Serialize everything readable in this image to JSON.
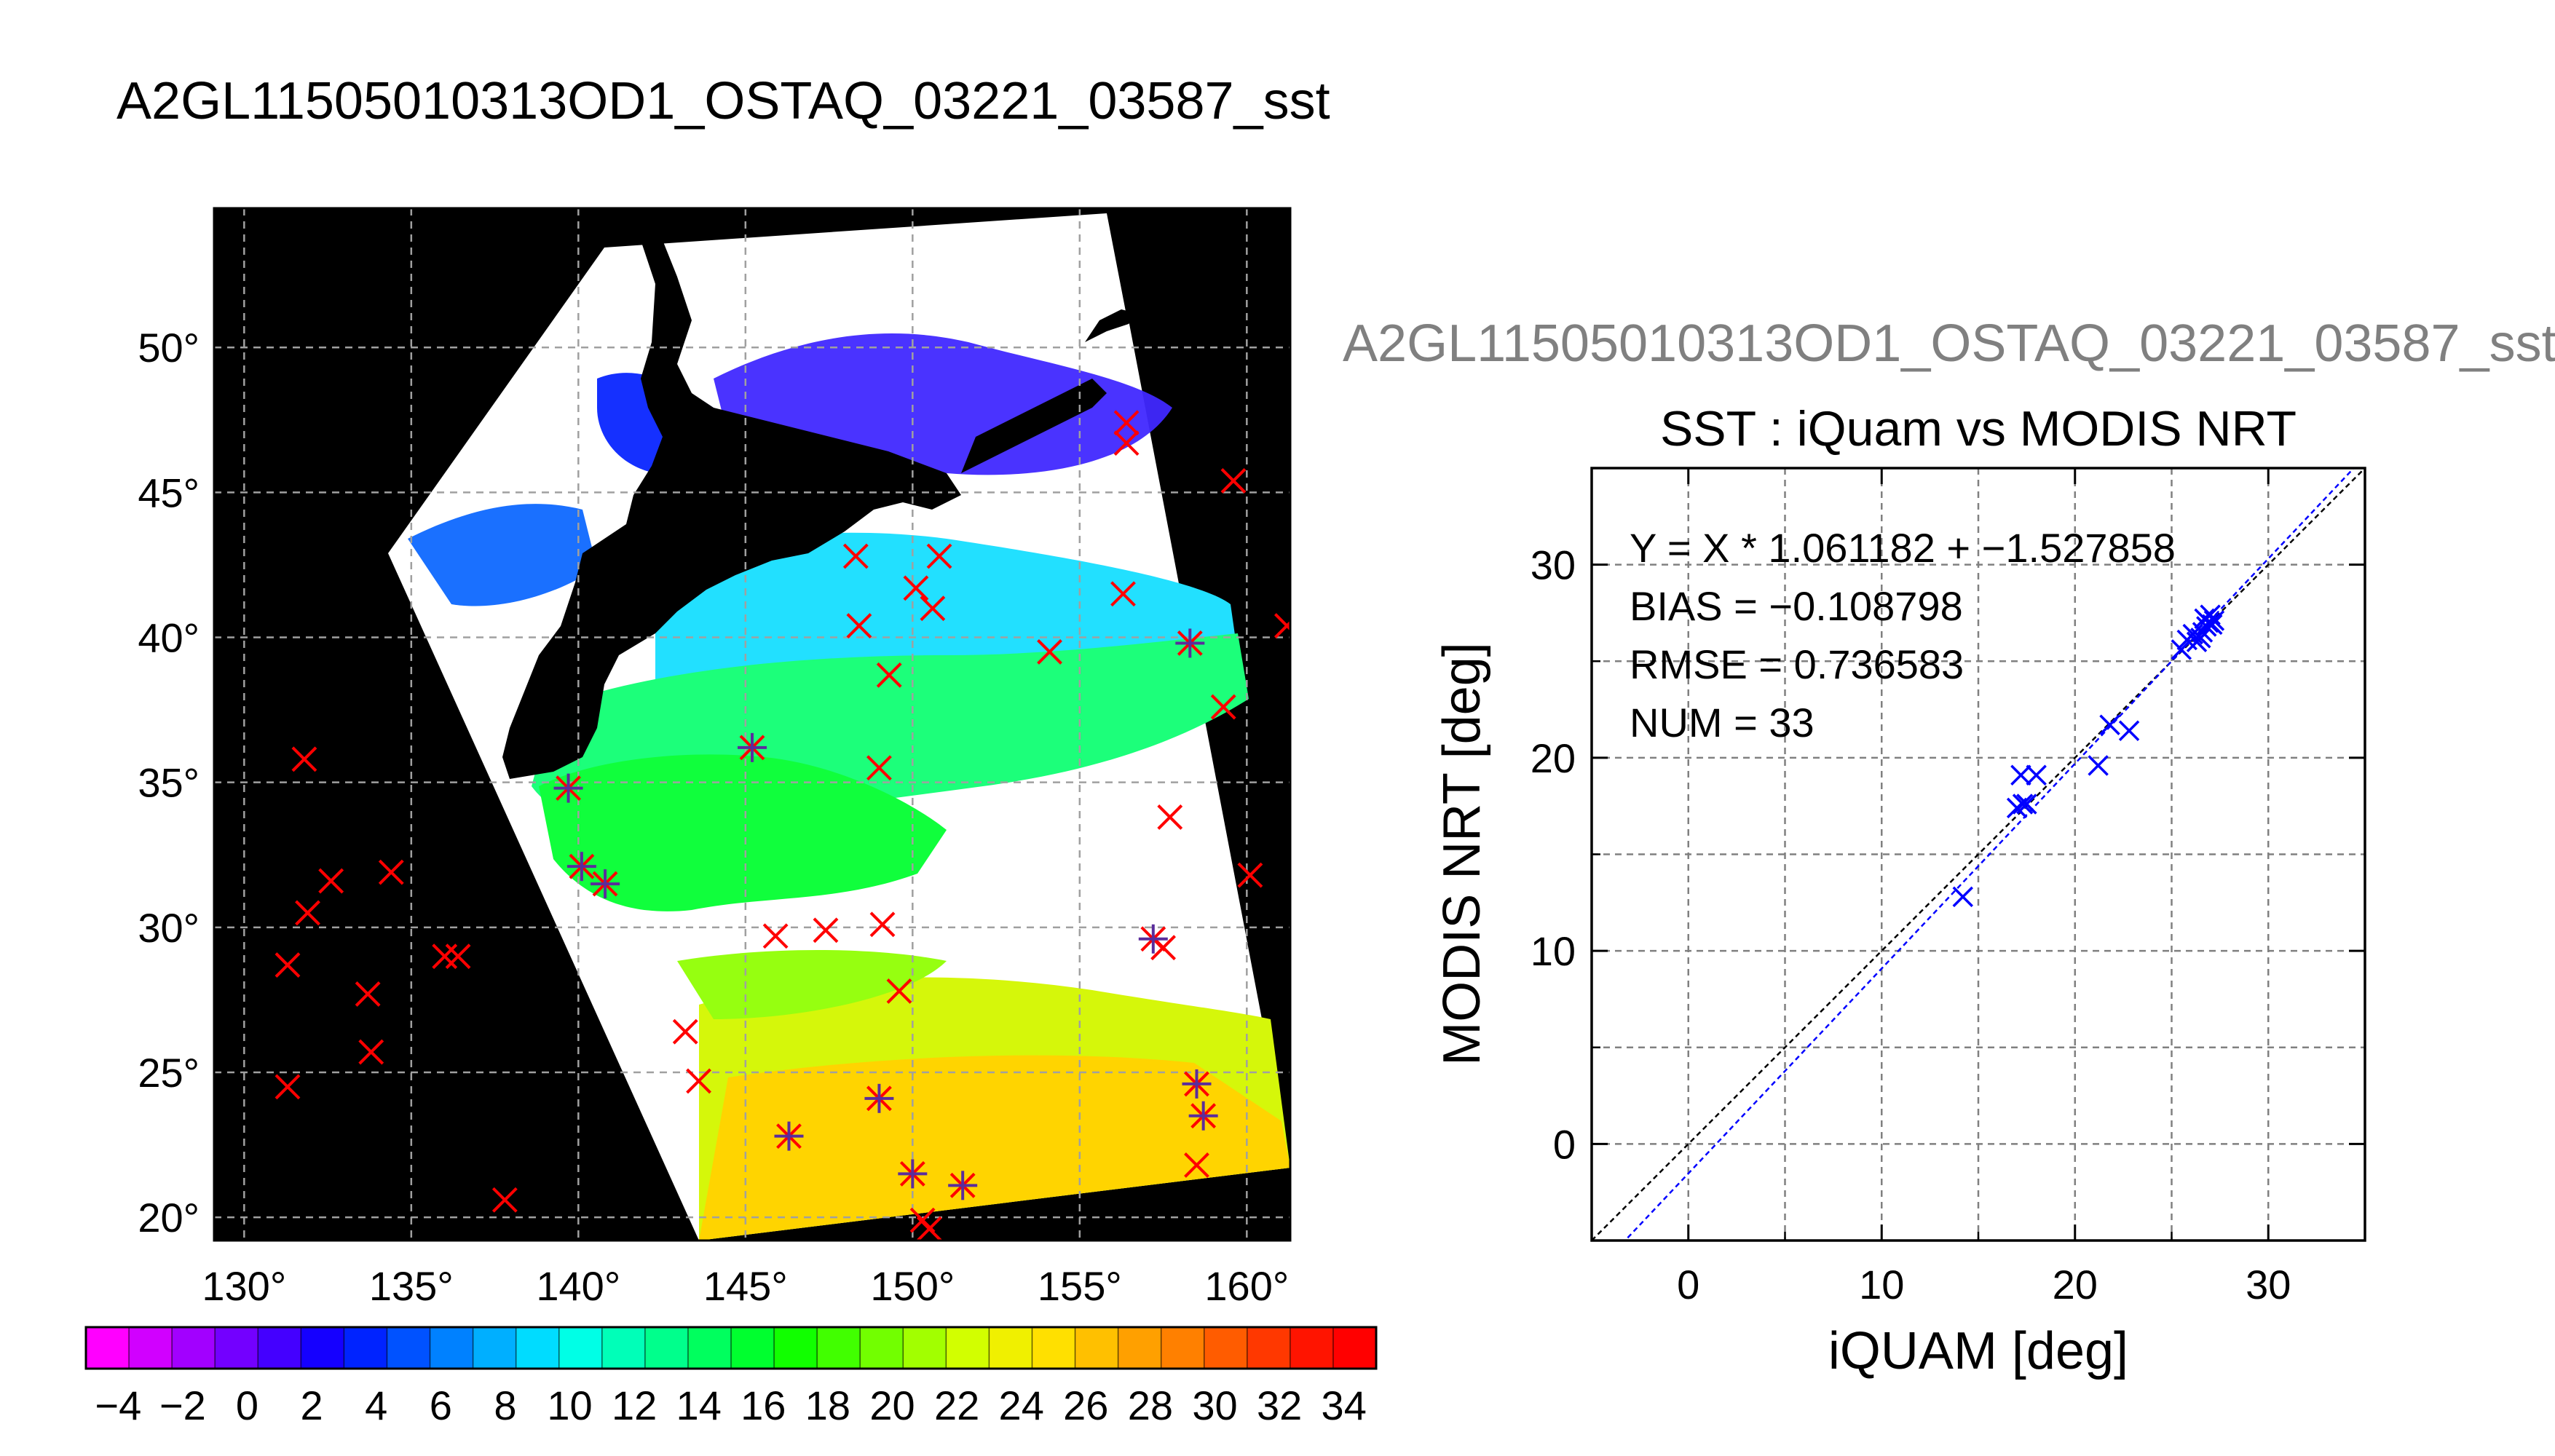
{
  "main_title": "A2GL11505010313OD1_OSTAQ_03221_03587_sst",
  "map": {
    "lon_ticks": [
      "130°",
      "135°",
      "140°",
      "145°",
      "150°",
      "155°",
      "160°"
    ],
    "lat_ticks": [
      "50°",
      "45°",
      "40°",
      "35°",
      "30°",
      "25°",
      "20°"
    ],
    "lon_range": [
      129.1,
      161.3
    ],
    "lat_range": [
      19.2,
      54.8
    ],
    "match_markers": [
      [
        131.8,
        35.8
      ],
      [
        131.9,
        30.5
      ],
      [
        132.6,
        31.6
      ],
      [
        134.4,
        31.9
      ],
      [
        131.3,
        28.7
      ],
      [
        131.3,
        24.5
      ],
      [
        133.7,
        27.7
      ],
      [
        133.8,
        25.7
      ],
      [
        136.0,
        29.0
      ],
      [
        136.4,
        29.0
      ],
      [
        137.8,
        20.6
      ],
      [
        139.7,
        34.8
      ],
      [
        140.1,
        32.1
      ],
      [
        140.8,
        31.5
      ],
      [
        145.2,
        36.2
      ],
      [
        146.3,
        22.8
      ],
      [
        143.2,
        26.4
      ],
      [
        143.6,
        24.7
      ],
      [
        145.9,
        29.7
      ],
      [
        147.4,
        29.9
      ],
      [
        148.3,
        42.8
      ],
      [
        148.4,
        40.4
      ],
      [
        149.3,
        38.7
      ],
      [
        149.0,
        35.5
      ],
      [
        149.1,
        30.1
      ],
      [
        149.0,
        24.1
      ],
      [
        149.6,
        27.8
      ],
      [
        150.0,
        21.5
      ],
      [
        150.3,
        19.9
      ],
      [
        150.5,
        19.6
      ],
      [
        151.5,
        21.1
      ],
      [
        150.1,
        41.7
      ],
      [
        150.6,
        41.0
      ],
      [
        150.8,
        42.8
      ],
      [
        154.1,
        39.5
      ],
      [
        156.4,
        47.4
      ],
      [
        156.4,
        46.7
      ],
      [
        156.3,
        41.5
      ],
      [
        157.2,
        29.6
      ],
      [
        157.5,
        29.3
      ],
      [
        157.7,
        33.8
      ],
      [
        158.3,
        39.8
      ],
      [
        158.5,
        24.6
      ],
      [
        158.5,
        21.8
      ],
      [
        158.7,
        23.5
      ],
      [
        159.3,
        37.6
      ],
      [
        159.6,
        45.4
      ],
      [
        160.1,
        31.8
      ],
      [
        161.2,
        40.4
      ]
    ],
    "star_markers": [
      [
        139.7,
        34.8
      ],
      [
        140.1,
        32.1
      ],
      [
        140.8,
        31.5
      ],
      [
        145.2,
        36.2
      ],
      [
        146.3,
        22.8
      ],
      [
        149.0,
        24.1
      ],
      [
        150.0,
        21.5
      ],
      [
        151.5,
        21.1
      ],
      [
        157.2,
        29.6
      ],
      [
        158.3,
        39.8
      ],
      [
        158.5,
        24.6
      ],
      [
        158.7,
        23.5
      ]
    ]
  },
  "colorbar": {
    "tick_labels": [
      "−4",
      "−2",
      "0",
      "2",
      "4",
      "6",
      "8",
      "10",
      "12",
      "14",
      "16",
      "18",
      "20",
      "22",
      "24",
      "26",
      "28",
      "30",
      "32",
      "34"
    ],
    "range": [
      -5,
      35
    ],
    "colors": [
      "#ff00ff",
      "#d100ff",
      "#a200ff",
      "#7300ff",
      "#4400ff",
      "#1500ff",
      "#0023ff",
      "#0052ff",
      "#0081ff",
      "#00afff",
      "#00dcff",
      "#00ffe6",
      "#00ffb8",
      "#00ff8c",
      "#00ff5e",
      "#00ff2f",
      "#11ff00",
      "#41ff00",
      "#72ff00",
      "#a2ff00",
      "#d2ff00",
      "#f0f000",
      "#ffe000",
      "#ffc000",
      "#ffa000",
      "#ff8000",
      "#ff5c00",
      "#ff3800",
      "#ff1400",
      "#ff0000"
    ]
  },
  "scatter_supertitle": "A2GL11505010313OD1_OSTAQ_03221_03587_sst",
  "chart_data": {
    "type": "scatter",
    "title": "SST : iQuam vs MODIS NRT",
    "xlabel": "iQUAM [deg]",
    "ylabel": "MODIS NRT [deg]",
    "xlim": [
      -5,
      35
    ],
    "ylim": [
      -5,
      35
    ],
    "x_ticks": [
      "0",
      "10",
      "20",
      "30"
    ],
    "y_ticks": [
      "0",
      "10",
      "20",
      "30"
    ],
    "grid": true,
    "stats": [
      "Y = X * 1.061182 + −1.527858",
      "BIAS = −0.108798",
      "RMSE = 0.736583",
      "NUM = 33"
    ],
    "series": [
      {
        "marker": "x",
        "color": "#0000ff",
        "points": [
          [
            14.2,
            12.8
          ],
          [
            17.0,
            17.4
          ],
          [
            17.3,
            17.6
          ],
          [
            17.5,
            17.6
          ],
          [
            17.2,
            19.1
          ],
          [
            18.0,
            19.1
          ],
          [
            21.2,
            19.6
          ],
          [
            21.8,
            21.7
          ],
          [
            22.8,
            21.4
          ],
          [
            25.5,
            25.6
          ],
          [
            25.8,
            26.1
          ],
          [
            26.1,
            26.4
          ],
          [
            26.3,
            26.0
          ],
          [
            26.5,
            26.2
          ],
          [
            26.6,
            26.5
          ],
          [
            26.7,
            27.2
          ],
          [
            26.8,
            26.8
          ],
          [
            26.9,
            27.0
          ],
          [
            27.0,
            27.4
          ],
          [
            27.1,
            26.9
          ],
          [
            27.2,
            27.1
          ]
        ]
      }
    ],
    "lines": [
      {
        "name": "one-to-one",
        "slope": 1.0,
        "intercept": 0.0,
        "color": "#000000",
        "dash": true
      },
      {
        "name": "regression",
        "slope": 1.061182,
        "intercept": -1.527858,
        "color": "#0000ff",
        "dash": true
      }
    ]
  }
}
